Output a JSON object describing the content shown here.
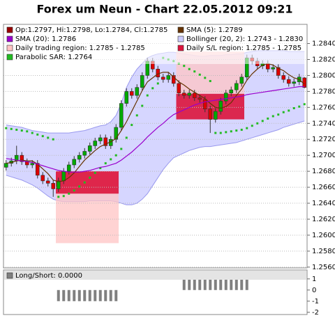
{
  "chart_data": {
    "type": "candlestick",
    "title": "Forex um Neun - Chart 22.05.2012 09:21",
    "ohlc_label": "Op:1.2797, Hi:1.2798, Lo:1.2784, Cl:1.2785",
    "ohlc_color": "#990000",
    "up_color": "#00aa00",
    "down_color": "#dd0000",
    "ohlc": [
      [
        1.2685,
        1.2694,
        1.2681,
        1.269
      ],
      [
        1.269,
        1.2697,
        1.2686,
        1.2693
      ],
      [
        1.2693,
        1.2712,
        1.2689,
        1.27
      ],
      [
        1.27,
        1.2704,
        1.2688,
        1.2692
      ],
      [
        1.2692,
        1.2696,
        1.2684,
        1.2688
      ],
      [
        1.2688,
        1.2694,
        1.2684,
        1.269
      ],
      [
        1.269,
        1.2694,
        1.2671,
        1.2675
      ],
      [
        1.2675,
        1.2679,
        1.2664,
        1.2668
      ],
      [
        1.2668,
        1.2672,
        1.2661,
        1.2665
      ],
      [
        1.2665,
        1.2669,
        1.2648,
        1.2658
      ],
      [
        1.2658,
        1.2672,
        1.2654,
        1.2668
      ],
      [
        1.2668,
        1.2684,
        1.2664,
        1.268
      ],
      [
        1.268,
        1.2692,
        1.2676,
        1.2688
      ],
      [
        1.2688,
        1.2699,
        1.2684,
        1.2695
      ],
      [
        1.2695,
        1.2704,
        1.2691,
        1.27
      ],
      [
        1.27,
        1.2709,
        1.2696,
        1.2705
      ],
      [
        1.2705,
        1.2716,
        1.2701,
        1.2712
      ],
      [
        1.2712,
        1.2722,
        1.2708,
        1.2718
      ],
      [
        1.2718,
        1.2726,
        1.2714,
        1.2722
      ],
      [
        1.2722,
        1.2726,
        1.2708,
        1.2712
      ],
      [
        1.2712,
        1.2724,
        1.2708,
        1.272
      ],
      [
        1.272,
        1.2739,
        1.2716,
        1.2735
      ],
      [
        1.2735,
        1.2769,
        1.2731,
        1.2765
      ],
      [
        1.2765,
        1.2784,
        1.2761,
        1.278
      ],
      [
        1.278,
        1.2784,
        1.2771,
        1.2775
      ],
      [
        1.2775,
        1.2789,
        1.2771,
        1.2785
      ],
      [
        1.2785,
        1.2804,
        1.2781,
        1.28
      ],
      [
        1.28,
        1.2822,
        1.2796,
        1.2818
      ],
      [
        1.2818,
        1.2822,
        1.2804,
        1.2808
      ],
      [
        1.2808,
        1.2812,
        1.2794,
        1.2798
      ],
      [
        1.2798,
        1.2802,
        1.2791,
        1.2795
      ],
      [
        1.2795,
        1.2804,
        1.2791,
        1.28
      ],
      [
        1.28,
        1.2804,
        1.2786,
        1.279
      ],
      [
        1.279,
        1.2794,
        1.2774,
        1.2778
      ],
      [
        1.2778,
        1.2782,
        1.2771,
        1.2775
      ],
      [
        1.2775,
        1.2782,
        1.2771,
        1.2778
      ],
      [
        1.2778,
        1.2782,
        1.2768,
        1.2772
      ],
      [
        1.2772,
        1.2776,
        1.2766,
        1.277
      ],
      [
        1.277,
        1.2774,
        1.2754,
        1.2758
      ],
      [
        1.2758,
        1.2762,
        1.2728,
        1.2745
      ],
      [
        1.2745,
        1.2759,
        1.2741,
        1.2755
      ],
      [
        1.2755,
        1.2772,
        1.2751,
        1.2768
      ],
      [
        1.2768,
        1.2782,
        1.2764,
        1.2778
      ],
      [
        1.2778,
        1.2786,
        1.2774,
        1.2782
      ],
      [
        1.2782,
        1.2794,
        1.2778,
        1.279
      ],
      [
        1.279,
        1.2802,
        1.2786,
        1.2798
      ],
      [
        1.2798,
        1.2826,
        1.2794,
        1.2822
      ],
      [
        1.2822,
        1.2826,
        1.2814,
        1.2818
      ],
      [
        1.2818,
        1.2822,
        1.2808,
        1.2812
      ],
      [
        1.2812,
        1.2819,
        1.2808,
        1.2815
      ],
      [
        1.2815,
        1.2819,
        1.2804,
        1.2808
      ],
      [
        1.2808,
        1.2814,
        1.2804,
        1.281
      ],
      [
        1.281,
        1.2814,
        1.2796,
        1.28
      ],
      [
        1.28,
        1.2804,
        1.2791,
        1.2795
      ],
      [
        1.2795,
        1.2799,
        1.2786,
        1.279
      ],
      [
        1.279,
        1.2796,
        1.2786,
        1.2792
      ],
      [
        1.2792,
        1.2802,
        1.2788,
        1.2798
      ],
      [
        1.2797,
        1.2798,
        1.2784,
        1.2785
      ]
    ],
    "series": [
      {
        "name": "SMA (5): 1.2789",
        "color": "#663300",
        "marker": "line",
        "values": [
          1.269,
          1.2691,
          1.2693,
          1.2694,
          1.2693,
          1.2693,
          1.2689,
          1.2683,
          1.2677,
          1.2669,
          1.2667,
          1.2668,
          1.2672,
          1.2678,
          1.2686,
          1.2694,
          1.27,
          1.2706,
          1.2711,
          1.2714,
          1.2717,
          1.2721,
          1.2731,
          1.2742,
          1.2755,
          1.2768,
          1.2781,
          1.2792,
          1.2797,
          1.2802,
          1.2804,
          1.2804,
          1.2798,
          1.2792,
          1.2788,
          1.2783,
          1.2779,
          1.2775,
          1.2771,
          1.2765,
          1.276,
          1.2759,
          1.2761,
          1.2766,
          1.2775,
          1.2783,
          1.2794,
          1.2802,
          1.2808,
          1.2813,
          1.2815,
          1.2813,
          1.2809,
          1.2806,
          1.2801,
          1.2797,
          1.2795,
          1.2789
        ]
      },
      {
        "name": "SMA (20): 1.2786",
        "color": "#9900cc",
        "marker": "line",
        "values": [
          1.2696,
          1.2695,
          1.2694,
          1.2693,
          1.2692,
          1.2691,
          1.2689,
          1.2687,
          1.2685,
          1.2683,
          1.2681,
          1.268,
          1.2679,
          1.2679,
          1.2679,
          1.268,
          1.2681,
          1.2683,
          1.2685,
          1.2686,
          1.2688,
          1.269,
          1.2694,
          1.2699,
          1.2704,
          1.271,
          1.2716,
          1.2723,
          1.2729,
          1.2735,
          1.274,
          1.2746,
          1.2751,
          1.2754,
          1.2757,
          1.276,
          1.2763,
          1.2765,
          1.2767,
          1.2768,
          1.2769,
          1.277,
          1.2771,
          1.2772,
          1.2773,
          1.2774,
          1.2776,
          1.2777,
          1.2778,
          1.2779,
          1.278,
          1.2781,
          1.2782,
          1.2783,
          1.2784,
          1.2785,
          1.2786,
          1.2786
        ]
      },
      {
        "name": "Parabolic SAR: 1.2764",
        "color": "#22bb22",
        "marker": "square",
        "values": [
          1.2734,
          1.2733,
          1.2732,
          1.2731,
          1.273,
          1.2728,
          1.2726,
          1.2724,
          1.2722,
          1.272,
          1.2648,
          1.2649,
          1.2652,
          1.2656,
          1.2661,
          1.2666,
          1.2672,
          1.2678,
          1.2684,
          1.269,
          1.2695,
          1.27,
          1.2708,
          1.2722,
          1.2738,
          1.275,
          1.2762,
          1.2775,
          1.2784,
          1.279,
          1.2822,
          1.282,
          1.2818,
          1.2815,
          1.2812,
          1.2808,
          1.2805,
          1.2801,
          1.2797,
          1.2793,
          1.2728,
          1.2728,
          1.2729,
          1.273,
          1.2731,
          1.2732,
          1.2734,
          1.2737,
          1.274,
          1.2743,
          1.2746,
          1.2749,
          1.2751,
          1.2754,
          1.2756,
          1.2759,
          1.2761,
          1.2764
        ]
      }
    ],
    "bollinger": {
      "name": "Bollinger (20, 2): 1.2743 - 1.2830",
      "color": "#9999ee",
      "fill": "#ccccff",
      "upper": [
        1.2738,
        1.2737,
        1.2736,
        1.2735,
        1.2733,
        1.2731,
        1.273,
        1.2729,
        1.2728,
        1.2728,
        1.2728,
        1.2728,
        1.2728,
        1.2729,
        1.273,
        1.2731,
        1.2733,
        1.2735,
        1.2737,
        1.2738,
        1.2742,
        1.275,
        1.2765,
        1.2785,
        1.2798,
        1.2808,
        1.2815,
        1.2822,
        1.2825,
        1.2827,
        1.2828,
        1.2829,
        1.2829,
        1.2828,
        1.2827,
        1.2826,
        1.2825,
        1.2824,
        1.2824,
        1.2825,
        1.2825,
        1.2825,
        1.2826,
        1.2826,
        1.2827,
        1.2827,
        1.2829,
        1.283,
        1.2831,
        1.2831,
        1.2831,
        1.2831,
        1.2831,
        1.2831,
        1.283,
        1.283,
        1.283,
        1.283
      ],
      "lower": [
        1.2675,
        1.2673,
        1.2671,
        1.2669,
        1.2666,
        1.2663,
        1.2659,
        1.2654,
        1.2649,
        1.2645,
        1.2643,
        1.2642,
        1.2642,
        1.2642,
        1.2642,
        1.2642,
        1.2643,
        1.2643,
        1.2643,
        1.2643,
        1.2643,
        1.2642,
        1.264,
        1.2638,
        1.2638,
        1.264,
        1.2645,
        1.2652,
        1.2662,
        1.2672,
        1.2682,
        1.269,
        1.2697,
        1.27,
        1.2703,
        1.2706,
        1.2708,
        1.271,
        1.2711,
        1.2711,
        1.2712,
        1.2713,
        1.2714,
        1.2715,
        1.2716,
        1.2718,
        1.272,
        1.2722,
        1.2724,
        1.2726,
        1.2728,
        1.273,
        1.2732,
        1.2735,
        1.2737,
        1.2739,
        1.2741,
        1.2743
      ]
    },
    "regions": [
      {
        "name": "Daily trading region: 1.2785 - 1.2785",
        "color": "#ffc4c4",
        "ranges": [
          {
            "start": 10,
            "end": 21,
            "low": 1.259,
            "high": 1.268
          },
          {
            "start": 33,
            "end": 45,
            "low": 1.2777,
            "high": 1.283
          }
        ]
      },
      {
        "name": "Daily S/L region: 1.2785 - 1.2785",
        "color": "#dc143c",
        "ranges": [
          {
            "start": 10,
            "end": 21,
            "low": 1.2652,
            "high": 1.268
          },
          {
            "start": 33,
            "end": 45,
            "low": 1.2745,
            "high": 1.2777
          }
        ]
      }
    ],
    "ylim": [
      1.2559,
      1.2864
    ],
    "yticks": [
      {
        "value": 1.256,
        "label": "1.2560"
      },
      {
        "value": 1.258,
        "label": "1.2580"
      },
      {
        "value": 1.26,
        "label": "1.2600"
      },
      {
        "value": 1.262,
        "label": "1.2620"
      },
      {
        "value": 1.264,
        "label": "1.2640"
      },
      {
        "value": 1.266,
        "label": "1.2660"
      },
      {
        "value": 1.268,
        "label": "1.2680"
      },
      {
        "value": 1.27,
        "label": "1.2700"
      },
      {
        "value": 1.272,
        "label": "1.2720"
      },
      {
        "value": 1.274,
        "label": "1.2740"
      },
      {
        "value": 1.276,
        "label": "1.2760"
      },
      {
        "value": 1.278,
        "label": "1.2780"
      },
      {
        "value": 1.28,
        "label": "1.2800"
      },
      {
        "value": 1.282,
        "label": "1.2820"
      },
      {
        "value": 1.284,
        "label": "1.2840"
      }
    ],
    "grid": true,
    "indicator": {
      "name": "Long/Short: 0.0000",
      "color": "#808080",
      "ylim": [
        -2.2,
        1.8
      ],
      "yticks": [
        1,
        0,
        -1,
        -2
      ],
      "values": [
        0,
        0,
        0,
        0,
        0,
        0,
        0,
        0,
        0,
        0,
        -1,
        -1,
        -1,
        -1,
        -1,
        -1,
        -1,
        -1,
        -1,
        -1,
        -1,
        -1,
        0,
        0,
        0,
        0,
        0,
        0,
        0,
        0,
        0,
        0,
        0,
        0,
        1,
        1,
        1,
        1,
        1,
        1,
        1,
        1,
        1,
        1,
        1,
        1,
        1,
        0,
        0,
        0,
        0,
        0,
        0,
        0,
        0,
        0,
        0,
        0
      ]
    }
  }
}
